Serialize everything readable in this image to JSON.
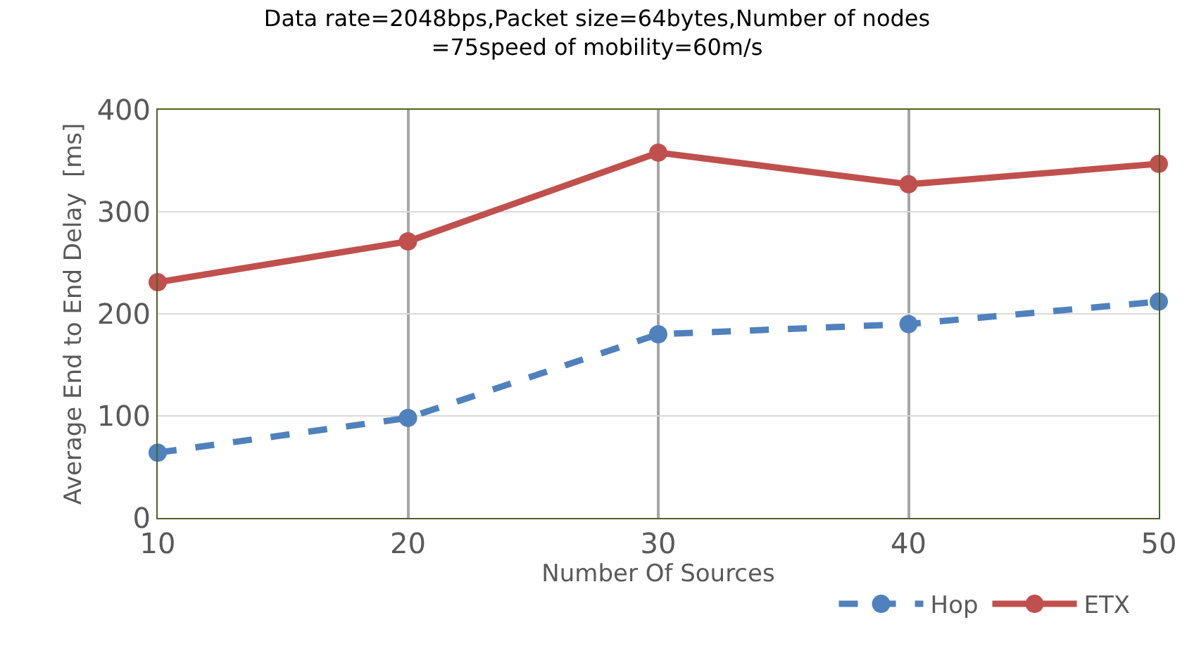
{
  "chart_data": {
    "type": "line",
    "title": "Data rate=2048bps,Packet size=64bytes,Number of nodes\n=75speed of mobility=60m/s",
    "xlabel": "Number Of Sources",
    "ylabel": "Average End to End Delay  [ms]",
    "x": [
      10,
      20,
      30,
      40,
      50
    ],
    "xlim": [
      10,
      50
    ],
    "xticks": [
      10,
      20,
      30,
      40,
      50
    ],
    "ylim": [
      0,
      400
    ],
    "yticks": [
      0,
      100,
      200,
      300,
      400
    ],
    "series": [
      {
        "name": "Hop",
        "color": "#4f81bd",
        "values": [
          64,
          98,
          180,
          190,
          212
        ],
        "line_style": "dashed"
      },
      {
        "name": "ETX",
        "color": "#c0504d",
        "values": [
          231,
          271,
          358,
          327,
          347
        ],
        "line_style": "solid"
      }
    ],
    "marker": "circle",
    "grid": true,
    "legend": "bottom"
  }
}
